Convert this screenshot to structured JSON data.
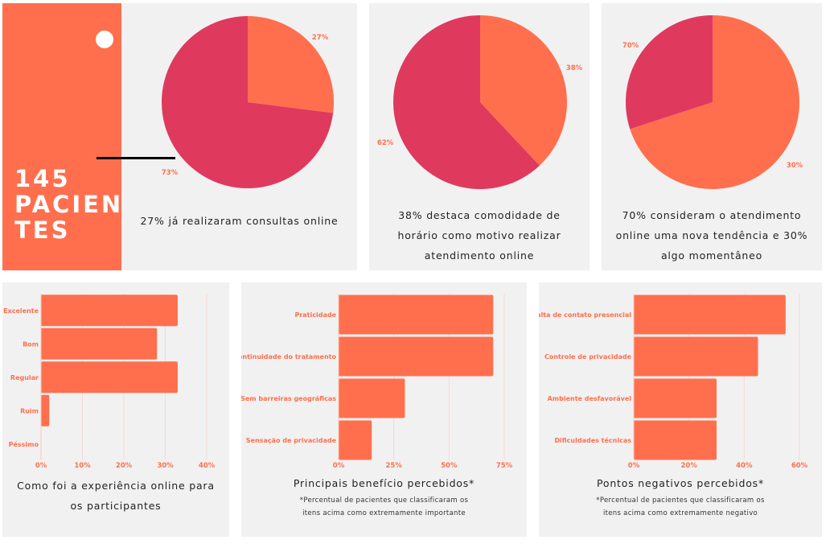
{
  "summary": {
    "count_line1": "145",
    "count_line2": "PACIEN",
    "count_line3": "TES"
  },
  "colors": {
    "accent": "#ff6f4e",
    "secondary": "#e0395e",
    "panel": "#f1f1f1"
  },
  "chart_data": [
    {
      "type": "pie",
      "caption": "27% já realizaram consultas online",
      "labels": [
        "27%",
        "73%"
      ],
      "values": [
        27,
        73
      ],
      "colors": [
        "#ff6f4e",
        "#e0395e"
      ]
    },
    {
      "type": "pie",
      "caption_lines": [
        "38% destaca comodidade de",
        "horário como motivo realizar",
        "atendimento online"
      ],
      "labels": [
        "38%",
        "62%"
      ],
      "values": [
        38,
        62
      ],
      "colors": [
        "#ff6f4e",
        "#e0395e"
      ]
    },
    {
      "type": "pie",
      "caption_lines": [
        "70% consideram o atendimento",
        "online uma nova tendência e 30%",
        "algo momentâneo"
      ],
      "labels": [
        "70%",
        "30%"
      ],
      "values": [
        70,
        30
      ],
      "colors": [
        "#ff6f4e",
        "#e0395e"
      ]
    },
    {
      "type": "bar",
      "orientation": "horizontal",
      "caption_lines": [
        "Como foi a experiência online para",
        "os participantes"
      ],
      "categories": [
        "Excelente",
        "Bom",
        "Regular",
        "Ruim",
        "Péssimo"
      ],
      "values": [
        33,
        28,
        33,
        2,
        0
      ],
      "xlim": [
        0,
        40
      ],
      "xticks": [
        0,
        10,
        20,
        30,
        40
      ],
      "xtick_labels": [
        "0%",
        "10%",
        "20%",
        "30%",
        "40%"
      ]
    },
    {
      "type": "bar",
      "orientation": "horizontal",
      "caption": "Principais benefício percebidos*",
      "note_lines": [
        "*Percentual de pacientes que classificaram os",
        "itens acima como extremamente importante"
      ],
      "categories": [
        "Praticidade",
        "Continuidade do tratamento",
        "Sem barreiras geográficas",
        "Sensação de privacidade"
      ],
      "values": [
        70,
        70,
        30,
        15
      ],
      "xlim": [
        0,
        75
      ],
      "xticks": [
        0,
        25,
        50,
        75
      ],
      "xtick_labels": [
        "0%",
        "25%",
        "50%",
        "75%"
      ]
    },
    {
      "type": "bar",
      "orientation": "horizontal",
      "caption": "Pontos negativos percebidos*",
      "note_lines": [
        "*Percentual de pacientes que classificaram os",
        "itens acima como extremamente negativo"
      ],
      "categories": [
        "Falta de contato presencial",
        "Controle de privacidade",
        "Ambiente desfavorável",
        "Dificuldades técnicas"
      ],
      "values": [
        55,
        45,
        30,
        30
      ],
      "xlim": [
        0,
        60
      ],
      "xticks": [
        0,
        20,
        40,
        60
      ],
      "xtick_labels": [
        "0%",
        "20%",
        "40%",
        "60%"
      ]
    }
  ]
}
